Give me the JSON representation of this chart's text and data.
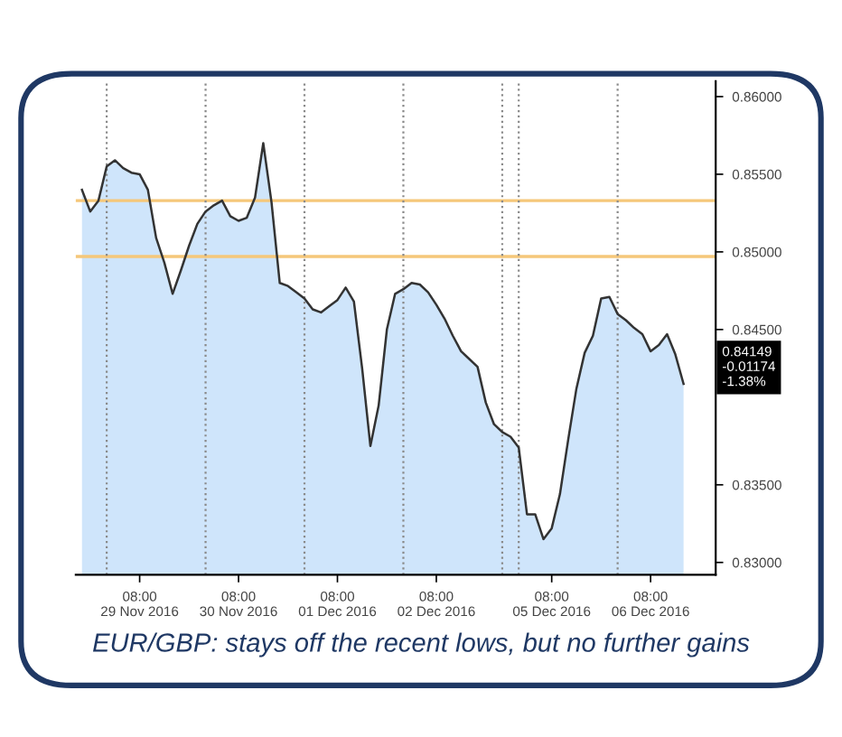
{
  "chart_data": {
    "type": "area",
    "categories": [
      null,
      null,
      null,
      null,
      null,
      null,
      null,
      "08:00\n29 Nov 2016",
      null,
      null,
      null,
      null,
      null,
      null,
      null,
      null,
      null,
      null,
      null,
      "08:00\n30 Nov 2016",
      null,
      null,
      null,
      null,
      null,
      null,
      null,
      null,
      null,
      null,
      null,
      "08:00\n01 Dec 2016",
      null,
      null,
      null,
      null,
      null,
      null,
      null,
      null,
      null,
      null,
      null,
      "08:00\n02 Dec 2016",
      null,
      null,
      null,
      null,
      null,
      null,
      null,
      null,
      null,
      null,
      null,
      null,
      null,
      "08:00\n05 Dec 2016",
      null,
      null,
      null,
      null,
      null,
      null,
      null,
      null,
      null,
      null,
      null,
      "08:00\n06 Dec 2016",
      null,
      null,
      null,
      null
    ],
    "series": [
      {
        "color": "#cfe5fb",
        "values": [
          0.854,
          0.8526,
          0.8533,
          0.8555,
          0.8559,
          0.8554,
          0.8551,
          0.855,
          0.854,
          0.8509,
          0.8493,
          0.8473,
          0.8488,
          0.8504,
          0.8518,
          0.8526,
          0.853,
          0.8533,
          0.8523,
          0.852,
          0.8522,
          0.8535,
          0.857,
          0.8532,
          0.848,
          0.8478,
          0.8474,
          0.847,
          0.8463,
          0.8461,
          0.8465,
          0.8469,
          0.8477,
          0.8468,
          0.8425,
          0.8375,
          0.8401,
          0.845,
          0.8473,
          0.8476,
          0.848,
          0.8479,
          0.8474,
          0.8466,
          0.8457,
          0.8446,
          0.8436,
          0.8431,
          0.8426,
          0.8403,
          0.8389,
          0.8384,
          0.8381,
          0.8374,
          0.8331,
          0.8331,
          0.8315,
          0.8322,
          0.8344,
          0.8379,
          0.8412,
          0.8435,
          0.8446,
          0.847,
          0.8471,
          0.846,
          0.8456,
          0.8451,
          0.8447,
          0.8436,
          0.844,
          0.8447,
          0.8434,
          0.8415
        ]
      }
    ],
    "ylim": [
      0.8292,
      0.861
    ],
    "yticks": [
      {
        "value": 0.83,
        "label": "0.83000"
      },
      {
        "value": 0.835,
        "label": "0.83500"
      },
      {
        "value": 0.845,
        "label": "0.84500"
      },
      {
        "value": 0.85,
        "label": "0.85000"
      },
      {
        "value": 0.855,
        "label": "0.85500"
      },
      {
        "value": 0.86,
        "label": "0.86000"
      }
    ],
    "ref_lines": [
      {
        "axis": "y",
        "value": 0.8533,
        "color": "#f5c77a",
        "line_style": "solid"
      },
      {
        "axis": "y",
        "value": 0.8497,
        "color": "#f5c77a",
        "line_style": "solid"
      }
    ],
    "annotations": [
      "0.84149\n-0.01174\n-1.38%",
      "EUR/GBP: stays off the recent lows, but no further gains"
    ],
    "grid": "x",
    "legend": false
  }
}
